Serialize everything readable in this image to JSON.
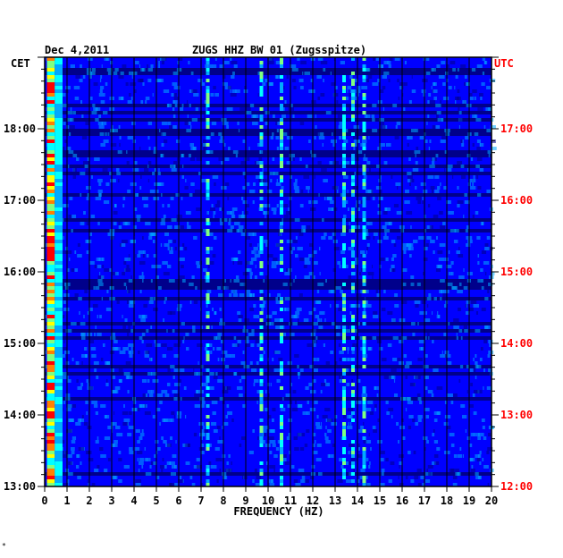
{
  "chart_data": {
    "type": "heatmap",
    "date": "Dec 4,2011",
    "title": "ZUGS HHZ BW 01 (Zugsspitze)",
    "xlabel": "FREQUENCY (HZ)",
    "xlim": [
      0,
      20
    ],
    "x_ticks": [
      "0",
      "1",
      "2",
      "3",
      "4",
      "5",
      "6",
      "7",
      "8",
      "9",
      "10",
      "11",
      "12",
      "13",
      "14",
      "15",
      "16",
      "17",
      "18",
      "19",
      "20"
    ],
    "left_axis_label": "CET",
    "right_axis_label": "UTC",
    "y_time_range_cet": [
      "13:00",
      "19:00"
    ],
    "y_ticks_cet": [
      "18:00",
      "17:00",
      "16:00",
      "15:00",
      "14:00",
      "13:00"
    ],
    "y_ticks_utc": [
      "17:00",
      "16:00",
      "15:00",
      "14:00",
      "13:00",
      "12:00"
    ],
    "colormap": [
      "#00008b",
      "#0000ff",
      "#00aaff",
      "#00ffff",
      "#80ff80",
      "#ffff00",
      "#ff8000",
      "#ff0000"
    ],
    "strong_bands_hz": [
      0.3,
      7.3,
      9.7,
      10.6,
      13.4,
      13.8,
      14.3
    ],
    "grid": true
  },
  "colors": {
    "left_axis": "#000000",
    "right_axis": "#ff0000",
    "background_plot": "#0000ff"
  },
  "footnote": "*"
}
